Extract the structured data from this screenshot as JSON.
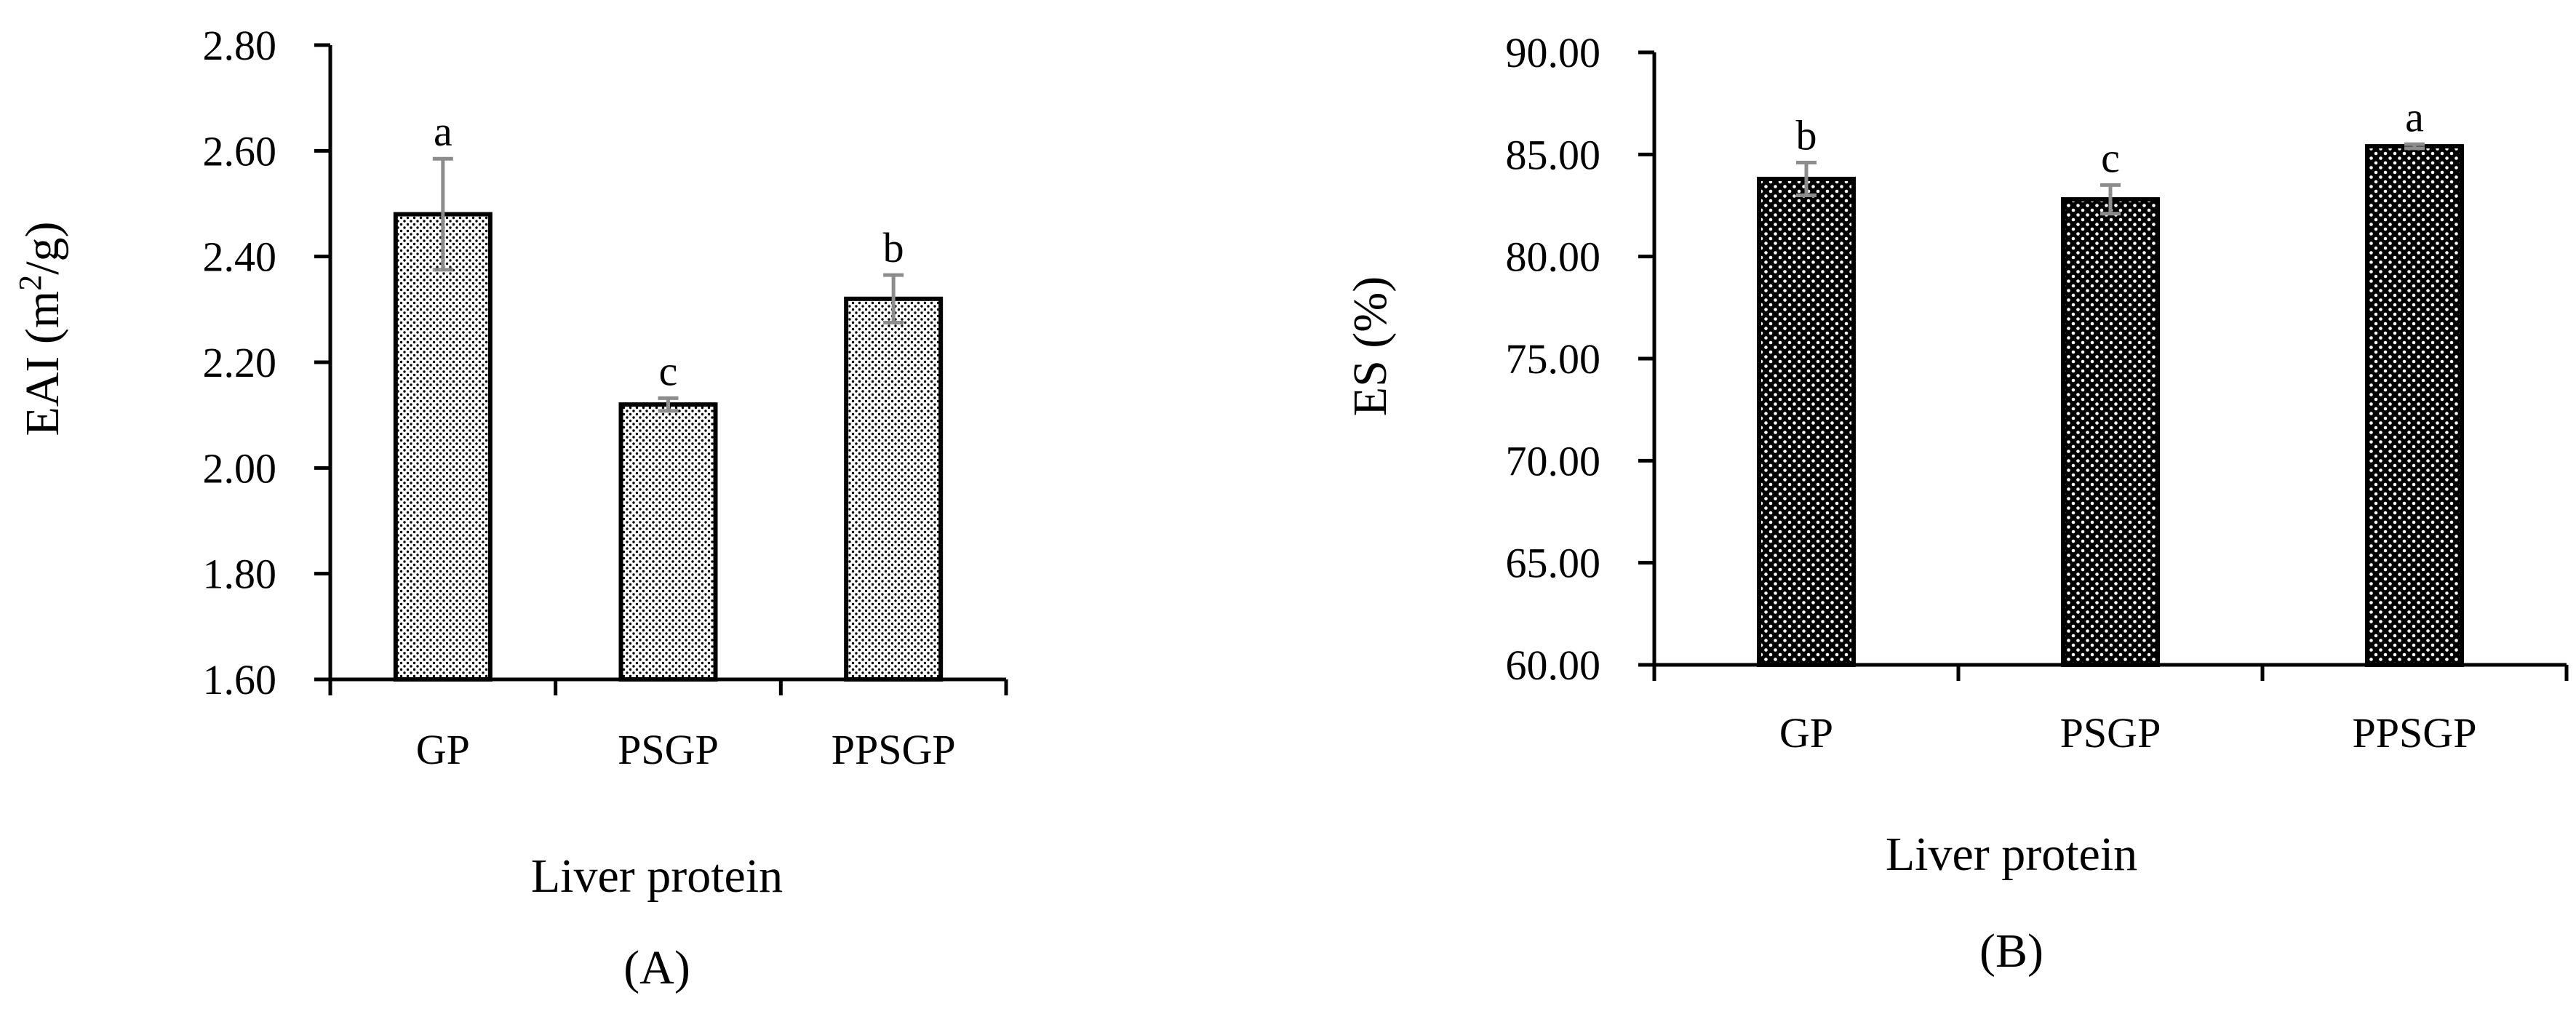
{
  "chart_data": [
    {
      "type": "bar",
      "panel_label": "(A)",
      "categories": [
        "GP",
        "PSGP",
        "PPSGP"
      ],
      "values": [
        2.48,
        2.12,
        2.32
      ],
      "errors": [
        0.105,
        0.012,
        0.045
      ],
      "significance": [
        "a",
        "c",
        "b"
      ],
      "ylabel_text": "EAI (m",
      "ylabel_sup": "2",
      "ylabel_tail": "/g)",
      "xlabel": "Liver protein",
      "ylim": [
        1.6,
        2.8
      ],
      "yticks": [
        "1.60",
        "1.80",
        "2.00",
        "2.20",
        "2.40",
        "2.60",
        "2.80"
      ],
      "bar_style": "light-dotted",
      "grid": false
    },
    {
      "type": "bar",
      "panel_label": "(B)",
      "categories": [
        "GP",
        "PSGP",
        "PPSGP"
      ],
      "values": [
        83.8,
        82.8,
        85.4
      ],
      "errors": [
        0.8,
        0.7,
        0.1
      ],
      "significance": [
        "b",
        "c",
        "a"
      ],
      "ylabel": "ES (%)",
      "xlabel": "Liver protein",
      "ylim": [
        60,
        90
      ],
      "yticks": [
        "60.00",
        "65.00",
        "70.00",
        "75.00",
        "80.00",
        "85.00",
        "90.00"
      ],
      "bar_style": "dark-dotted",
      "grid": false
    }
  ],
  "colors": {
    "axis": "#000000",
    "error_bar": "#8c8c8c",
    "bar_light_fill": "#ffffff",
    "bar_light_dot": "#000000",
    "bar_dark_fill": "#000000",
    "bar_dark_dot": "#ffffff"
  }
}
